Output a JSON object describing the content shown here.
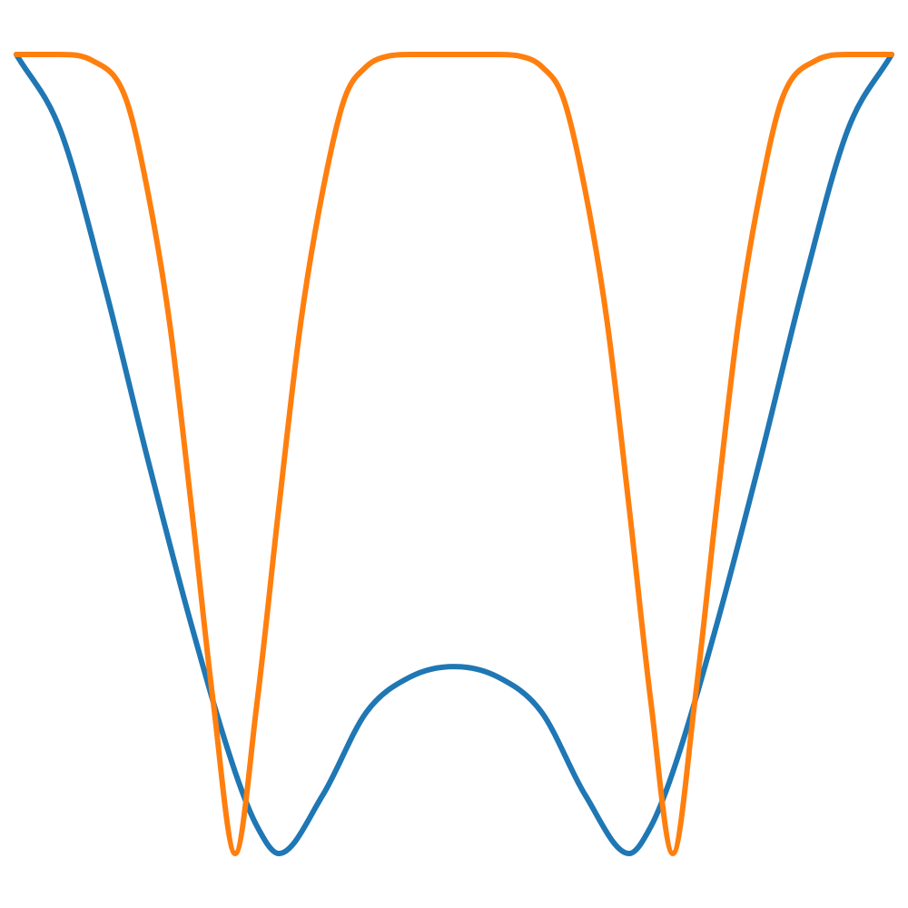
{
  "chart_data": {
    "type": "line",
    "title": "",
    "xlabel": "",
    "ylabel": "",
    "xlim": [
      -2,
      2
    ],
    "ylim": [
      0,
      1
    ],
    "grid": false,
    "axes_visible": false,
    "legend": "none",
    "series": [
      {
        "color": "#1f77b4",
        "x": [
          -2.0,
          -1.8,
          -1.6,
          -1.4,
          -1.2,
          -1.0,
          -0.9,
          -0.8,
          -0.6,
          -0.4,
          -0.2,
          0.0,
          0.2,
          0.4,
          0.6,
          0.8,
          0.9,
          1.0,
          1.2,
          1.4,
          1.6,
          1.8,
          2.0
        ],
        "y": [
          1.0,
          0.906,
          0.714,
          0.494,
          0.286,
          0.102,
          0.034,
          0.0,
          0.073,
          0.177,
          0.221,
          0.234,
          0.221,
          0.177,
          0.073,
          0.0,
          0.034,
          0.102,
          0.286,
          0.494,
          0.714,
          0.906,
          1.0
        ]
      },
      {
        "color": "#ff7f0e",
        "x": [
          -2.0,
          -1.8,
          -1.65,
          -1.5,
          -1.4,
          -1.3,
          -1.2,
          -1.1,
          -1.0,
          -0.9,
          -0.8,
          -0.7,
          -0.6,
          -0.5,
          -0.4,
          -0.3,
          -0.2,
          -0.1,
          0.0,
          0.1,
          0.2,
          0.3,
          0.4,
          0.5,
          0.6,
          0.7,
          0.8,
          0.9,
          1.0,
          1.1,
          1.2,
          1.3,
          1.4,
          1.5,
          1.65,
          1.8,
          2.0
        ],
        "y": [
          1.0,
          1.0,
          0.992,
          0.945,
          0.829,
          0.665,
          0.434,
          0.189,
          0.0,
          0.189,
          0.434,
          0.665,
          0.829,
          0.945,
          0.985,
          0.998,
          1.0,
          1.0,
          1.0,
          1.0,
          1.0,
          0.998,
          0.985,
          0.945,
          0.829,
          0.665,
          0.434,
          0.189,
          0.0,
          0.189,
          0.434,
          0.665,
          0.829,
          0.945,
          0.992,
          1.0,
          1.0
        ]
      }
    ]
  }
}
